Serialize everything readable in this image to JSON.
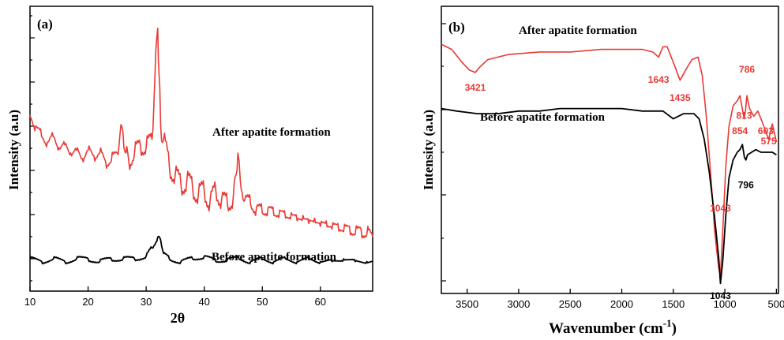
{
  "colors": {
    "after": "#e83a35",
    "before": "#000000",
    "axis": "#000000"
  },
  "chart_data": [
    {
      "panel": "(a)",
      "type": "line",
      "xlabel": "2θ",
      "ylabel": "Intensity (a.u)",
      "xlim": [
        10,
        69
      ],
      "ylim": [
        0,
        100
      ],
      "xticks": [
        "10",
        "20",
        "30",
        "40",
        "50",
        "60"
      ],
      "yticks_labeled": false,
      "grid": false,
      "series": [
        {
          "name": "After apatite formation",
          "color": "#e83a35",
          "x": [
            10,
            11,
            12,
            13,
            14,
            15,
            16,
            17,
            18,
            19,
            20,
            21,
            22,
            23,
            24,
            25,
            25.5,
            26,
            26.5,
            27,
            28,
            29,
            30,
            31,
            31.5,
            32,
            32.2,
            32.5,
            33,
            34,
            35,
            36,
            37,
            38,
            39,
            40,
            41,
            42,
            43,
            44,
            45,
            45.5,
            45.8,
            46.2,
            47,
            48,
            49,
            50,
            51,
            52,
            53,
            54,
            55,
            56,
            57,
            58,
            59,
            60,
            61,
            62,
            63,
            64,
            65,
            66,
            67,
            68,
            69
          ],
          "y": [
            64,
            60,
            56,
            54,
            56,
            52,
            53,
            50,
            51,
            48,
            51,
            49,
            50,
            47,
            47,
            50,
            57,
            58,
            50,
            47,
            50,
            53,
            52,
            55,
            78,
            96,
            80,
            60,
            55,
            45,
            42,
            38,
            40,
            37,
            35,
            36,
            32,
            36,
            33,
            31,
            34,
            42,
            50,
            40,
            33,
            31,
            30,
            28,
            30,
            27,
            29,
            26,
            28,
            25,
            27,
            24,
            26,
            23,
            25,
            22,
            24,
            21,
            23,
            20,
            22,
            20,
            19
          ]
        },
        {
          "name": "Before apatite formation",
          "color": "#000000",
          "x": [
            10,
            12,
            14,
            16,
            18,
            20,
            22,
            24,
            26,
            28,
            30,
            31,
            32,
            32.5,
            33,
            34,
            36,
            38,
            40,
            42,
            44,
            46,
            48,
            50,
            52,
            54,
            56,
            58,
            60,
            62,
            64,
            66,
            68,
            69
          ],
          "y": [
            11,
            10,
            11,
            10,
            11,
            11,
            10,
            11,
            11,
            11,
            12,
            15,
            19,
            18,
            13,
            11,
            10,
            11,
            12,
            10,
            11,
            11,
            10,
            11,
            10,
            11,
            10,
            11,
            10,
            10,
            11,
            10,
            10,
            10
          ]
        }
      ],
      "annotations": []
    },
    {
      "panel": "(b)",
      "type": "line",
      "xlabel": "Wavenumber (cm",
      "xlabel_sup": "-1",
      "xlabel_close": ")",
      "ylabel": "Intensity (a.u)",
      "xlim": [
        3750,
        480
      ],
      "ylim": [
        0,
        100
      ],
      "xticks": [
        "3500",
        "3000",
        "2500",
        "2000",
        "1500",
        "1000",
        "500"
      ],
      "yticks_labeled": false,
      "grid": false,
      "series": [
        {
          "name": "After apatite formation",
          "color": "#e83a35",
          "x": [
            3750,
            3650,
            3550,
            3480,
            3421,
            3380,
            3300,
            3100,
            2800,
            2500,
            2200,
            2000,
            1800,
            1700,
            1643,
            1600,
            1560,
            1500,
            1435,
            1380,
            1320,
            1260,
            1220,
            1180,
            1150,
            1120,
            1100,
            1080,
            1060,
            1043,
            1020,
            990,
            960,
            920,
            880,
            854,
            835,
            813,
            800,
            786,
            760,
            720,
            680,
            640,
            603,
            575,
            540,
            500
          ],
          "y": [
            92,
            90,
            85,
            82,
            81,
            83,
            86,
            88,
            89,
            89,
            90,
            90,
            90,
            89,
            87,
            91,
            91,
            85,
            78,
            82,
            86,
            87,
            80,
            64,
            48,
            32,
            20,
            12,
            5,
            2,
            20,
            45,
            60,
            68,
            70,
            72,
            68,
            63,
            66,
            72,
            67,
            64,
            66,
            62,
            58,
            55,
            61,
            54
          ]
        },
        {
          "name": "Before apatite formation",
          "color": "#000000",
          "x": [
            3750,
            3600,
            3400,
            3200,
            3000,
            2800,
            2600,
            2400,
            2200,
            2000,
            1800,
            1700,
            1600,
            1500,
            1400,
            1300,
            1250,
            1200,
            1150,
            1100,
            1060,
            1043,
            1020,
            990,
            960,
            920,
            880,
            854,
            830,
            810,
            796,
            780,
            740,
            700,
            650,
            600,
            540,
            500
          ],
          "y": [
            67,
            66,
            65,
            65,
            66,
            66,
            67,
            67,
            67,
            67,
            66,
            66,
            66,
            63,
            65,
            65,
            63,
            55,
            42,
            25,
            9,
            -1,
            8,
            26,
            40,
            47,
            50,
            51,
            53,
            48,
            47,
            49,
            50,
            51,
            50,
            50,
            50,
            49
          ]
        }
      ],
      "annotations": [
        {
          "text": "3421",
          "x": 3421,
          "y": 74,
          "color": "#e83a35"
        },
        {
          "text": "1643",
          "x": 1643,
          "y": 77,
          "color": "#e83a35"
        },
        {
          "text": "1435",
          "x": 1435,
          "y": 70,
          "color": "#e83a35"
        },
        {
          "text": "786",
          "x": 786,
          "y": 81,
          "color": "#e83a35"
        },
        {
          "text": "813",
          "x": 813,
          "y": 63,
          "color": "#e83a35"
        },
        {
          "text": "854",
          "x": 854,
          "y": 57,
          "color": "#e83a35"
        },
        {
          "text": "603",
          "x": 603,
          "y": 57,
          "color": "#e83a35"
        },
        {
          "text": "575",
          "x": 575,
          "y": 53,
          "color": "#e83a35"
        },
        {
          "text": "1043",
          "x": 1043,
          "y": 27,
          "color": "#e83a35"
        },
        {
          "text": "796",
          "x": 796,
          "y": 36,
          "color": "#000000"
        },
        {
          "text": "1043",
          "x": 1043,
          "y": -7,
          "color": "#000000"
        }
      ]
    }
  ],
  "panel_a": {
    "letter": "(a)",
    "xlabel": "2θ",
    "ylabel": "Intensity (a.u)",
    "label_after": "After apatite formation",
    "label_before": "Before apatite formation"
  },
  "panel_b": {
    "letter": "(b)",
    "xlabel_main": "Wavenumber (cm",
    "xlabel_sup": "-1",
    "xlabel_close": ")",
    "ylabel": "Intensity (a.u)",
    "label_after": "After apatite formation",
    "label_before": "Before apatite formation"
  }
}
